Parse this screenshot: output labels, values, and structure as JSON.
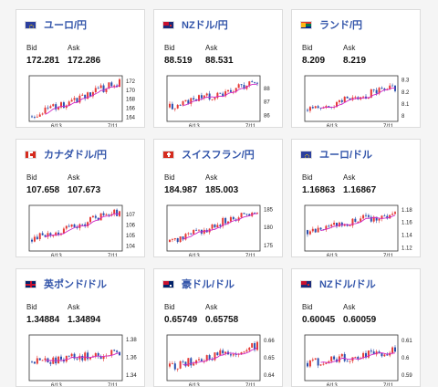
{
  "colors": {
    "up": "#e53935",
    "down": "#2a4fae",
    "ma": "#d026c6",
    "title": "#3355aa"
  },
  "labels": {
    "bid": "Bid",
    "ask": "Ask"
  },
  "cards": [
    {
      "flag": "eu",
      "title": "ユーロ/円",
      "bid": "172.281",
      "ask": "172.286",
      "chart_data": {
        "type": "candlestick",
        "x_ticks": [
          "6/13",
          "7/11"
        ],
        "y_ticks": [
          "172",
          "170",
          "168",
          "166",
          "164"
        ],
        "ylim": [
          163.5,
          172.8
        ],
        "trend": [
          164.2,
          171.8
        ],
        "seed": 3
      }
    },
    {
      "flag": "nz",
      "title": "NZドル/円",
      "bid": "88.519",
      "ask": "88.531",
      "chart_data": {
        "type": "candlestick",
        "x_ticks": [
          "6/13",
          "7/11"
        ],
        "y_ticks": [
          "88",
          "87",
          "86"
        ],
        "ylim": [
          85.7,
          88.8
        ],
        "trend": [
          86.6,
          88.4
        ],
        "seed": 7
      }
    },
    {
      "flag": "za",
      "title": "ランド/円",
      "bid": "8.209",
      "ask": "8.219",
      "chart_data": {
        "type": "candlestick",
        "x_ticks": [
          "6/13",
          "7/11"
        ],
        "y_ticks": [
          "8.3",
          "8.2",
          "8.1",
          "8"
        ],
        "ylim": [
          7.97,
          8.32
        ],
        "trend": [
          8.05,
          8.24
        ],
        "seed": 11
      }
    },
    {
      "flag": "ca",
      "title": "カナダドル/円",
      "bid": "107.658",
      "ask": "107.673",
      "chart_data": {
        "type": "candlestick",
        "x_ticks": [
          "6/13",
          "7/11"
        ],
        "y_ticks": [
          "107",
          "106",
          "105",
          "104"
        ],
        "ylim": [
          103.7,
          107.7
        ],
        "trend": [
          104.6,
          107.3
        ],
        "seed": 13
      }
    },
    {
      "flag": "ch",
      "title": "スイスフラン/円",
      "bid": "184.987",
      "ask": "185.003",
      "chart_data": {
        "type": "candlestick",
        "x_ticks": [
          "6/13",
          "7/11"
        ],
        "y_ticks": [
          "185",
          "180",
          "175"
        ],
        "ylim": [
          174.0,
          185.6
        ],
        "trend": [
          176.0,
          185.0
        ],
        "seed": 17
      }
    },
    {
      "flag": "eu",
      "title": "ユーロ/ドル",
      "bid": "1.16863",
      "ask": "1.16867",
      "chart_data": {
        "type": "candlestick",
        "x_ticks": [
          "6/13",
          "7/11"
        ],
        "y_ticks": [
          "1.18",
          "1.16",
          "1.14",
          "1.12"
        ],
        "ylim": [
          1.118,
          1.184
        ],
        "trend": [
          1.148,
          1.175
        ],
        "seed": 19
      }
    },
    {
      "flag": "gb",
      "title": "英ポンド/ドル",
      "bid": "1.34884",
      "ask": "1.34894",
      "chart_data": {
        "type": "candlestick",
        "x_ticks": [
          "6/13",
          "7/11"
        ],
        "y_ticks": [
          "1.38",
          "1.36",
          "1.34"
        ],
        "ylim": [
          1.336,
          1.383
        ],
        "trend": [
          1.355,
          1.365
        ],
        "seed": 23
      }
    },
    {
      "flag": "au",
      "title": "豪ドル/ドル",
      "bid": "0.65749",
      "ask": "0.65758",
      "chart_data": {
        "type": "candlestick",
        "x_ticks": [
          "6/13",
          "7/11"
        ],
        "y_ticks": [
          "0.66",
          "0.65",
          "0.64"
        ],
        "ylim": [
          0.638,
          0.662
        ],
        "trend": [
          0.645,
          0.657
        ],
        "seed": 29
      }
    },
    {
      "flag": "nz",
      "title": "NZドル/ドル",
      "bid": "0.60045",
      "ask": "0.60059",
      "chart_data": {
        "type": "candlestick",
        "x_ticks": [
          "6/13",
          "7/11"
        ],
        "y_ticks": [
          "0.61",
          "0.6",
          "0.59"
        ],
        "ylim": [
          0.588,
          0.612
        ],
        "trend": [
          0.597,
          0.604
        ],
        "seed": 31
      }
    }
  ]
}
